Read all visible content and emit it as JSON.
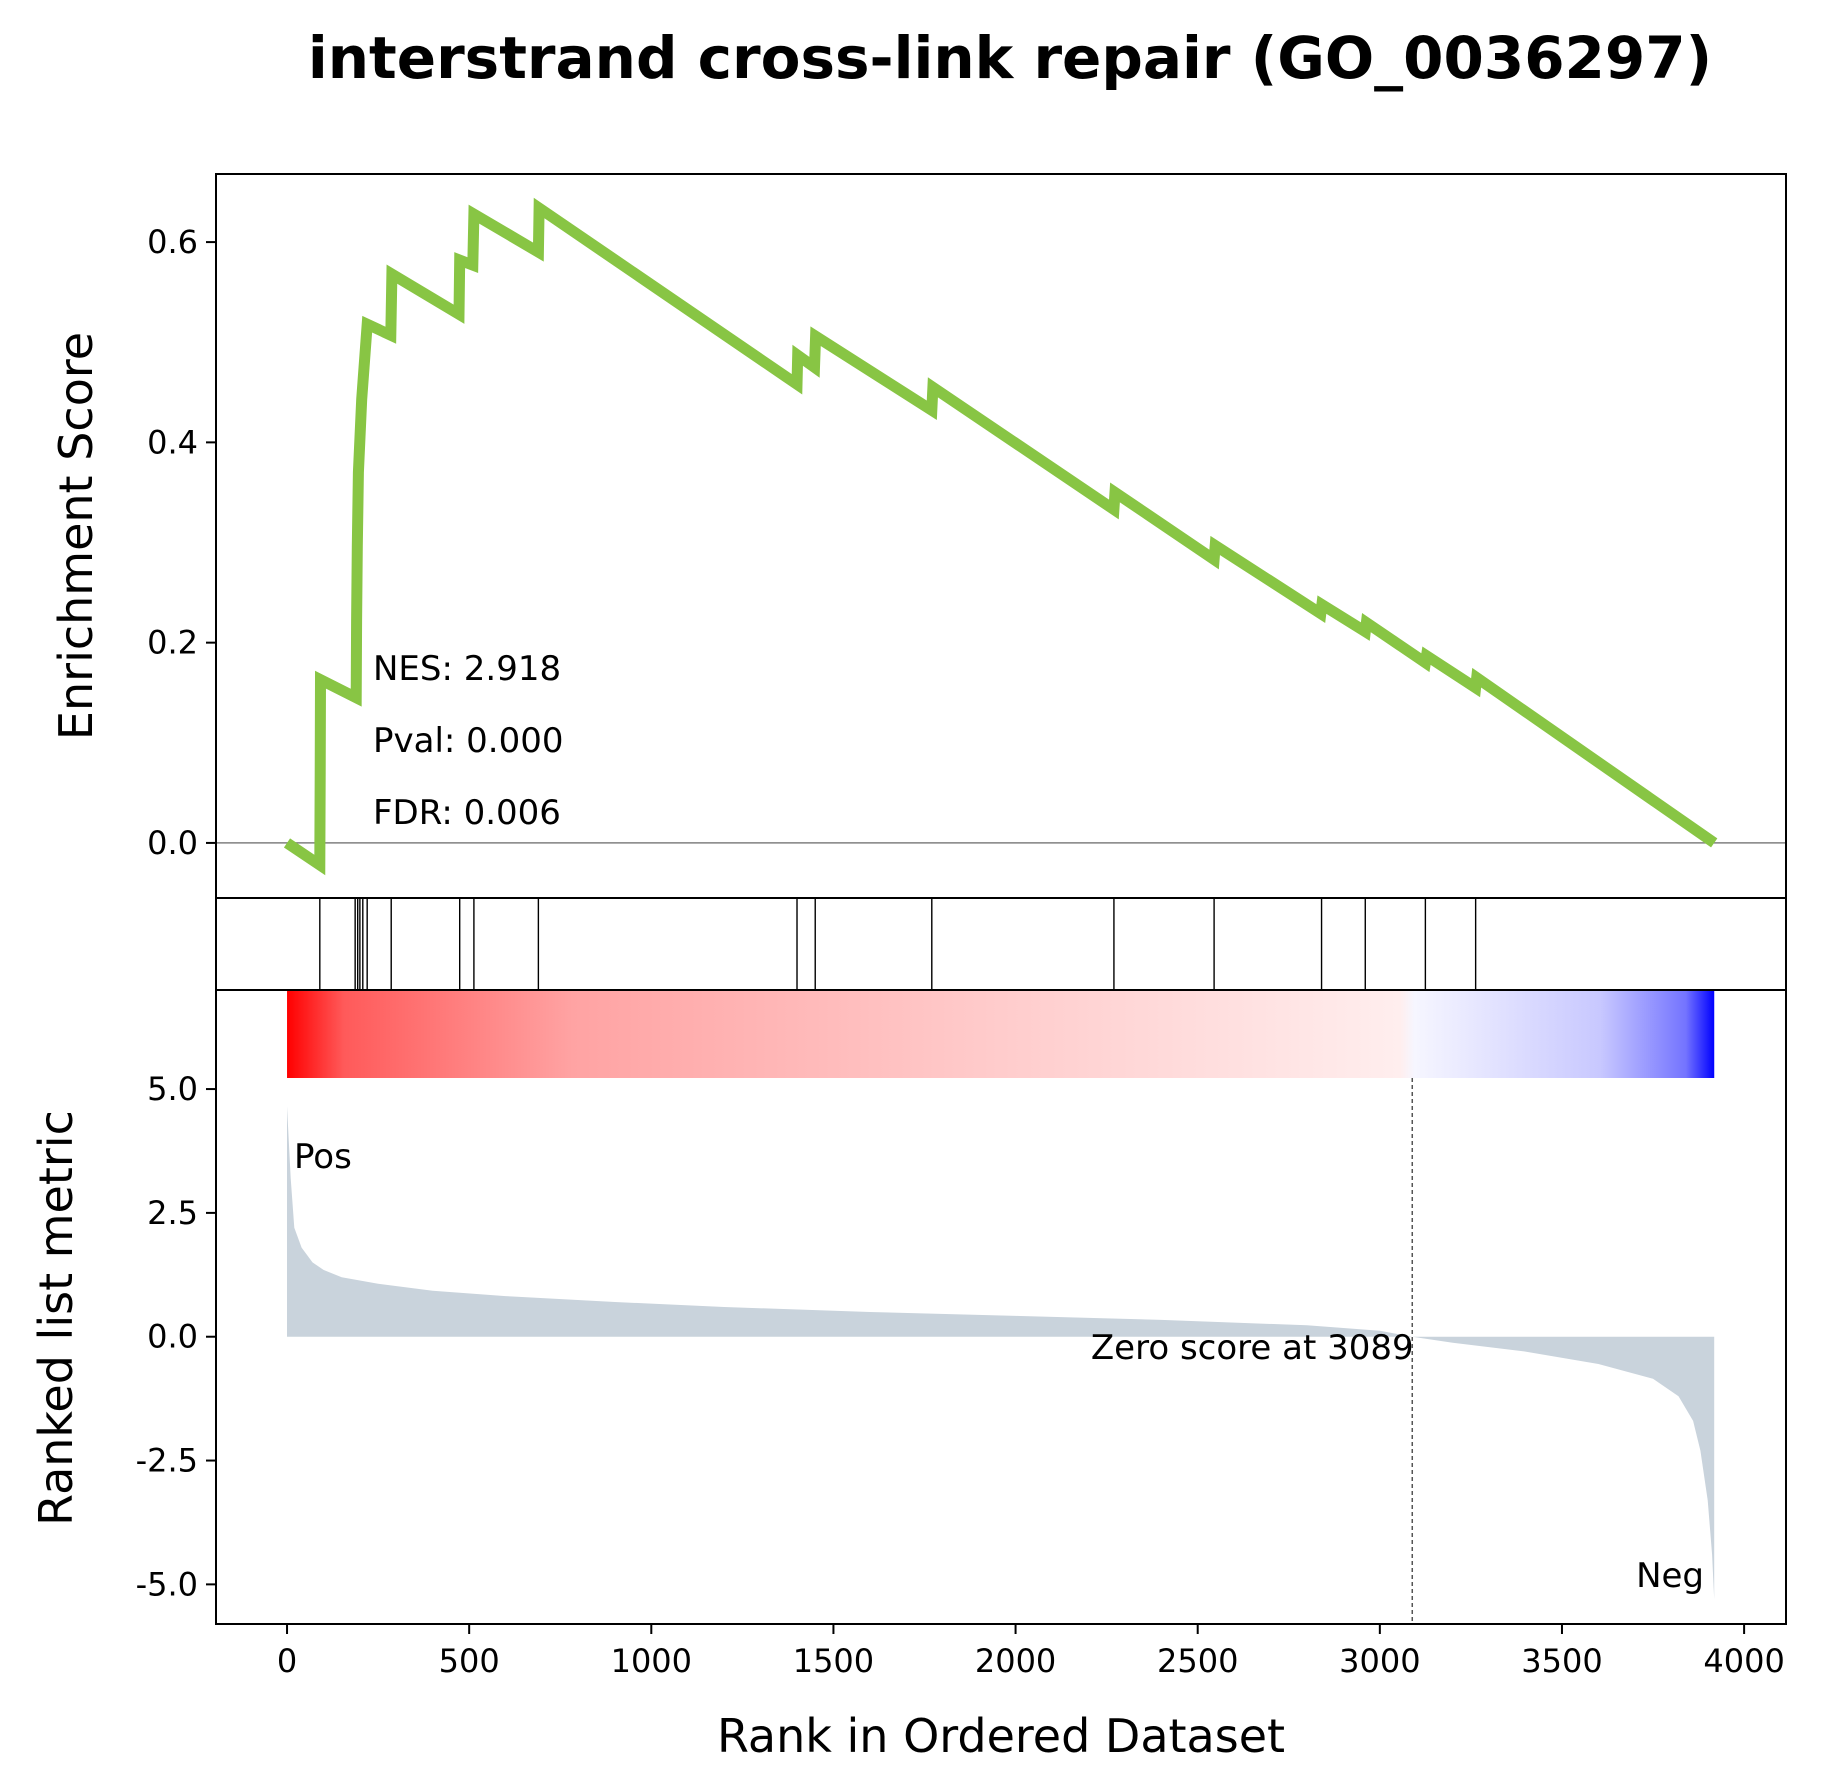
{
  "chart_data": {
    "type": "line",
    "title": "interstrand cross-link repair (GO_0036297)",
    "xlabel": "Rank in Ordered Dataset",
    "es_panel": {
      "ylabel": "Enrichment Score",
      "ylim": [
        -0.055,
        0.668
      ],
      "yticks": [
        "0.0",
        "0.2",
        "0.4",
        "0.6"
      ],
      "ytick_values": [
        0.0,
        0.2,
        0.4,
        0.6
      ],
      "line_color": "#88c544",
      "points": [
        [
          0,
          0.0
        ],
        [
          90,
          -0.022
        ],
        [
          91,
          0.07
        ],
        [
          92,
          0.163
        ],
        [
          190,
          0.145
        ],
        [
          191,
          0.222
        ],
        [
          193,
          0.296
        ],
        [
          196,
          0.37
        ],
        [
          205,
          0.443
        ],
        [
          220,
          0.518
        ],
        [
          285,
          0.507
        ],
        [
          288,
          0.568
        ],
        [
          472,
          0.528
        ],
        [
          474,
          0.582
        ],
        [
          510,
          0.577
        ],
        [
          513,
          0.628
        ],
        [
          690,
          0.59
        ],
        [
          692,
          0.634
        ],
        [
          1400,
          0.458
        ],
        [
          1402,
          0.487
        ],
        [
          1448,
          0.475
        ],
        [
          1451,
          0.506
        ],
        [
          1770,
          0.432
        ],
        [
          1773,
          0.455
        ],
        [
          2270,
          0.333
        ],
        [
          2273,
          0.35
        ],
        [
          2545,
          0.283
        ],
        [
          2548,
          0.297
        ],
        [
          2838,
          0.229
        ],
        [
          2841,
          0.238
        ],
        [
          2960,
          0.211
        ],
        [
          2963,
          0.22
        ],
        [
          3125,
          0.18
        ],
        [
          3128,
          0.187
        ],
        [
          3263,
          0.155
        ],
        [
          3266,
          0.165
        ],
        [
          3918,
          0.0
        ]
      ],
      "annotations": [
        "NES: 2.918",
        "Pval: 0.000",
        "FDR: 0.006"
      ]
    },
    "hits": [
      90,
      187,
      194,
      200,
      208,
      220,
      286,
      474,
      513,
      690,
      1400,
      1450,
      1770,
      2270,
      2545,
      2840,
      2960,
      3125,
      3263
    ],
    "ranked_panel": {
      "ylabel": "Ranked list metric",
      "ylim": [
        -5.8,
        7.0
      ],
      "yticks": [
        "5.0",
        "2.5",
        "0.0",
        "-2.5",
        "-5.0"
      ],
      "ytick_values": [
        5.0,
        2.5,
        0.0,
        -2.5,
        -5.0
      ],
      "fill_color": "#c9d3dc",
      "curve": [
        [
          0,
          4.65
        ],
        [
          10,
          3.2
        ],
        [
          20,
          2.2
        ],
        [
          40,
          1.8
        ],
        [
          70,
          1.5
        ],
        [
          100,
          1.35
        ],
        [
          150,
          1.2
        ],
        [
          250,
          1.07
        ],
        [
          400,
          0.93
        ],
        [
          600,
          0.82
        ],
        [
          900,
          0.7
        ],
        [
          1200,
          0.6
        ],
        [
          1600,
          0.5
        ],
        [
          2000,
          0.42
        ],
        [
          2400,
          0.34
        ],
        [
          2800,
          0.23
        ],
        [
          3000,
          0.12
        ],
        [
          3089,
          0.0
        ],
        [
          3200,
          -0.12
        ],
        [
          3400,
          -0.3
        ],
        [
          3600,
          -0.55
        ],
        [
          3750,
          -0.85
        ],
        [
          3820,
          -1.2
        ],
        [
          3860,
          -1.7
        ],
        [
          3880,
          -2.3
        ],
        [
          3900,
          -3.3
        ],
        [
          3912,
          -4.4
        ],
        [
          3918,
          -5.3
        ]
      ],
      "pos_label": "Pos",
      "neg_label": "Neg",
      "pos_color": "#ff0000",
      "neg_color": "#0000ff",
      "zero_cross": 3089,
      "zero_label": "Zero score at 3089"
    },
    "xlim": [
      -195,
      4115
    ],
    "xticks": [
      "0",
      "500",
      "1000",
      "1500",
      "2000",
      "2500",
      "3000",
      "3500",
      "4000"
    ],
    "xtick_values": [
      0,
      500,
      1000,
      1500,
      2000,
      2500,
      3000,
      3500,
      4000
    ],
    "n_genes": 3918
  }
}
